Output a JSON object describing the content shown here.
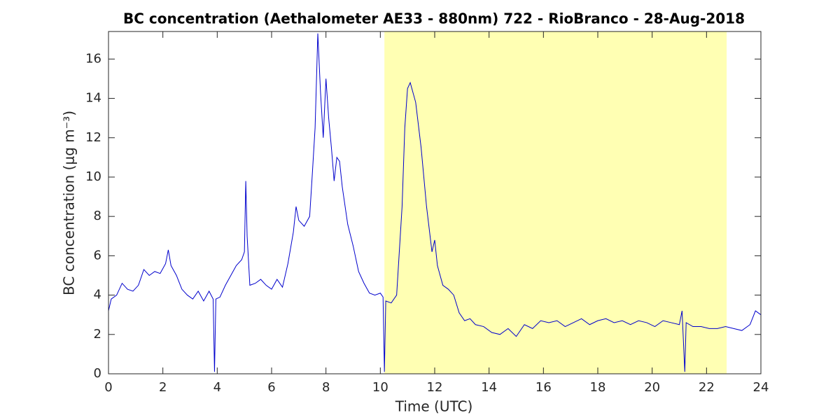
{
  "chart_data": {
    "type": "line",
    "title": "BC concentration (Aethalometer AE33 - 880nm) 722 - RioBranco - 28-Aug-2018",
    "xlabel": "Time (UTC)",
    "ylabel": "BC concentration (μg m⁻³)",
    "xlim": [
      0,
      24
    ],
    "ylim": [
      0,
      17.4
    ],
    "xticks": [
      0,
      2,
      4,
      6,
      8,
      10,
      12,
      14,
      16,
      18,
      20,
      22,
      24
    ],
    "yticks": [
      0,
      2,
      4,
      6,
      8,
      10,
      12,
      14,
      16
    ],
    "shade": {
      "x": [
        10.15,
        22.74
      ],
      "color": "#ffffb3"
    },
    "series": [
      {
        "color": "#0000cc",
        "x": [
          0,
          0.1,
          0.3,
          0.5,
          0.7,
          0.9,
          1.1,
          1.3,
          1.5,
          1.7,
          1.9,
          2.1,
          2.2,
          2.3,
          2.5,
          2.7,
          2.9,
          3.1,
          3.3,
          3.5,
          3.7,
          3.85,
          3.9,
          3.95,
          4.1,
          4.3,
          4.5,
          4.7,
          4.9,
          5.0,
          5.05,
          5.1,
          5.2,
          5.4,
          5.6,
          5.8,
          6.0,
          6.2,
          6.4,
          6.6,
          6.8,
          6.9,
          7.0,
          7.2,
          7.4,
          7.5,
          7.6,
          7.7,
          7.8,
          7.9,
          8.0,
          8.1,
          8.2,
          8.3,
          8.4,
          8.5,
          8.6,
          8.8,
          9.0,
          9.2,
          9.4,
          9.6,
          9.8,
          10.0,
          10.1,
          10.15,
          10.2,
          10.4,
          10.6,
          10.8,
          10.9,
          11.0,
          11.1,
          11.3,
          11.5,
          11.7,
          11.9,
          12.0,
          12.1,
          12.3,
          12.5,
          12.7,
          12.9,
          13.1,
          13.3,
          13.5,
          13.8,
          14.1,
          14.4,
          14.7,
          15.0,
          15.3,
          15.6,
          15.9,
          16.2,
          16.5,
          16.8,
          17.1,
          17.4,
          17.7,
          18.0,
          18.3,
          18.6,
          18.9,
          19.2,
          19.5,
          19.8,
          20.1,
          20.4,
          20.7,
          21.0,
          21.1,
          21.2,
          21.25,
          21.5,
          21.8,
          22.1,
          22.4,
          22.7,
          23.0,
          23.3,
          23.6,
          23.8,
          24
        ],
        "values": [
          3.2,
          3.8,
          4.0,
          4.6,
          4.3,
          4.2,
          4.5,
          5.3,
          5.0,
          5.2,
          5.1,
          5.6,
          6.3,
          5.5,
          5.0,
          4.3,
          4.0,
          3.8,
          4.2,
          3.7,
          4.2,
          3.8,
          0.1,
          3.8,
          3.9,
          4.5,
          5.0,
          5.5,
          5.8,
          6.2,
          9.8,
          7.0,
          4.5,
          4.6,
          4.8,
          4.5,
          4.3,
          4.8,
          4.4,
          5.6,
          7.2,
          8.5,
          7.8,
          7.5,
          8.0,
          10.2,
          12.5,
          17.3,
          14.3,
          12.0,
          15.0,
          13.0,
          11.5,
          9.8,
          11.0,
          10.8,
          9.5,
          7.6,
          6.5,
          5.2,
          4.6,
          4.1,
          4.0,
          4.1,
          3.9,
          0.1,
          3.7,
          3.6,
          4.0,
          8.5,
          12.5,
          14.5,
          14.8,
          13.8,
          11.5,
          8.5,
          6.2,
          6.8,
          5.5,
          4.5,
          4.3,
          4.0,
          3.1,
          2.7,
          2.8,
          2.5,
          2.4,
          2.1,
          2.0,
          2.3,
          1.9,
          2.5,
          2.3,
          2.7,
          2.6,
          2.7,
          2.4,
          2.6,
          2.8,
          2.5,
          2.7,
          2.8,
          2.6,
          2.7,
          2.5,
          2.7,
          2.6,
          2.4,
          2.7,
          2.6,
          2.5,
          3.2,
          0.1,
          2.6,
          2.4,
          2.4,
          2.3,
          2.3,
          2.4,
          2.3,
          2.2,
          2.5,
          3.2,
          3.0
        ]
      }
    ]
  }
}
